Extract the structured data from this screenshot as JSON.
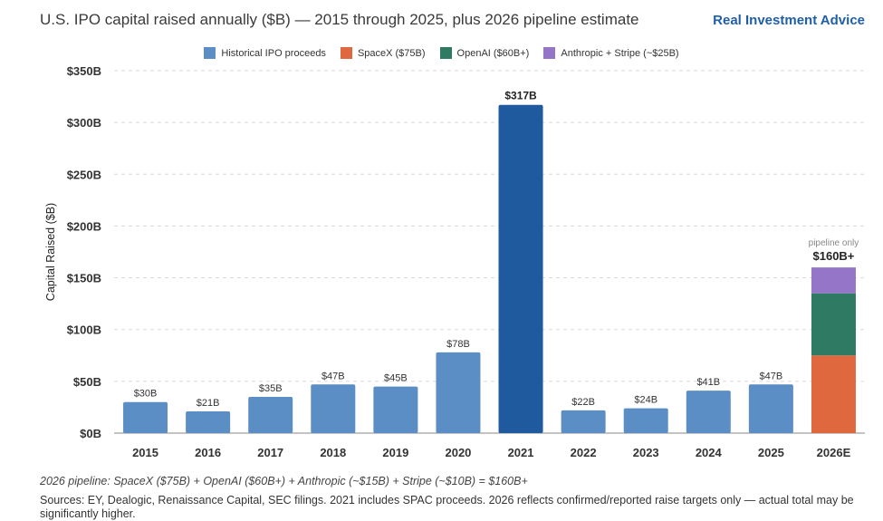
{
  "header": {
    "title": "U.S. IPO capital raised annually ($B) — 2015 through 2025, plus 2026 pipeline estimate",
    "brand": "Real Investment Advice"
  },
  "colors": {
    "historical": "#5b8ec4",
    "peak": "#1f5a9e",
    "spacex": "#e0683f",
    "openai": "#2e7a62",
    "anthropic_stripe": "#9575c8"
  },
  "legend": [
    {
      "label": "Historical IPO proceeds",
      "color": "#5b8ec4"
    },
    {
      "label": "SpaceX ($75B)",
      "color": "#e0683f"
    },
    {
      "label": "OpenAI ($60B+)",
      "color": "#2e7a62"
    },
    {
      "label": "Anthropic + Stripe (~$25B)",
      "color": "#9575c8"
    }
  ],
  "chart_data": {
    "type": "bar",
    "ylabel": "Capital Raised ($B)",
    "ylim": [
      0,
      350
    ],
    "yticks": [
      0,
      50,
      100,
      150,
      200,
      250,
      300,
      350
    ],
    "ytick_labels": [
      "$0B",
      "$50B",
      "$100B",
      "$150B",
      "$200B",
      "$250B",
      "$300B",
      "$350B"
    ],
    "grid": true,
    "legend_position": "top",
    "categories": [
      "2015",
      "2016",
      "2017",
      "2018",
      "2019",
      "2020",
      "2021",
      "2022",
      "2023",
      "2024",
      "2025",
      "2026E"
    ],
    "historical": [
      {
        "category": "2015",
        "value": 30,
        "label": "$30B"
      },
      {
        "category": "2016",
        "value": 21,
        "label": "$21B"
      },
      {
        "category": "2017",
        "value": 35,
        "label": "$35B"
      },
      {
        "category": "2018",
        "value": 47,
        "label": "$47B"
      },
      {
        "category": "2019",
        "value": 45,
        "label": "$45B"
      },
      {
        "category": "2020",
        "value": 78,
        "label": "$78B"
      },
      {
        "category": "2021",
        "value": 317,
        "label": "$317B",
        "highlight": true
      },
      {
        "category": "2022",
        "value": 22,
        "label": "$22B"
      },
      {
        "category": "2023",
        "value": 24,
        "label": "$24B"
      },
      {
        "category": "2024",
        "value": 41,
        "label": "$41B"
      },
      {
        "category": "2025",
        "value": 47,
        "label": "$47B"
      }
    ],
    "pipeline": {
      "category": "2026E",
      "segments": [
        {
          "name": "SpaceX",
          "value": 75,
          "color": "#e0683f"
        },
        {
          "name": "OpenAI",
          "value": 60,
          "color": "#2e7a62"
        },
        {
          "name": "Anthropic + Stripe",
          "value": 25,
          "color": "#9575c8"
        }
      ],
      "note": "pipeline only",
      "total_label": "$160B+"
    }
  },
  "footnote": "2026 pipeline: SpaceX ($75B) + OpenAI ($60B+) + Anthropic (~$15B) + Stripe (~$10B) = $160B+",
  "sources": "Sources: EY, Dealogic, Renaissance Capital, SEC filings. 2021 includes SPAC proceeds. 2026 reflects confirmed/reported raise targets only — actual total may be significantly higher."
}
